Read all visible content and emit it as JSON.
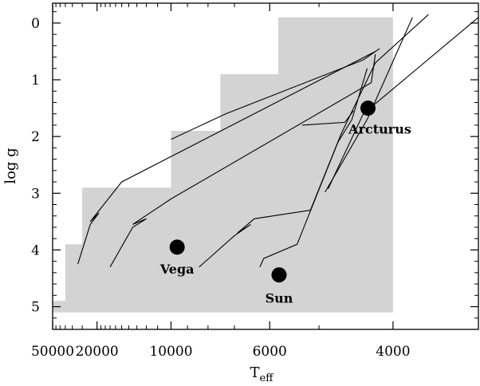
{
  "chart_data": {
    "type": "line",
    "xlabel_main": "T",
    "xlabel_sub": "eff",
    "ylabel": "log g",
    "x_scale": "reciprocal",
    "xlim": [
      50000,
      3250
    ],
    "ylim": [
      -0.35,
      5.4
    ],
    "x_ticks": [
      {
        "value": 50000,
        "label": "50000"
      },
      {
        "value": 20000,
        "label": "20000"
      },
      {
        "value": 10000,
        "label": "10000"
      },
      {
        "value": 6000,
        "label": "6000"
      },
      {
        "value": 4000,
        "label": "4000"
      }
    ],
    "y_ticks": [
      {
        "value": 0,
        "label": "0"
      },
      {
        "value": 1,
        "label": "1"
      },
      {
        "value": 2,
        "label": "2"
      },
      {
        "value": 3,
        "label": "3"
      },
      {
        "value": 4,
        "label": "4"
      },
      {
        "value": 5,
        "label": "5"
      }
    ],
    "shaded_region": {
      "color": "#d3d3d3",
      "boundary": [
        [
          50000,
          5.1
        ],
        [
          4000,
          5.1
        ],
        [
          4000,
          -0.1
        ],
        [
          5800,
          -0.1
        ],
        [
          5800,
          0.9
        ],
        [
          7500,
          0.9
        ],
        [
          7500,
          1.9
        ],
        [
          10000,
          1.9
        ],
        [
          10000,
          2.9
        ],
        [
          25000,
          2.9
        ],
        [
          25000,
          3.9
        ],
        [
          35000,
          3.9
        ],
        [
          35000,
          4.9
        ],
        [
          50000,
          4.9
        ]
      ]
    },
    "series": [
      {
        "points": [
          [
            27000,
            4.25
          ],
          [
            22000,
            3.55
          ],
          [
            19500,
            3.35
          ],
          [
            22000,
            3.5
          ],
          [
            15000,
            2.8
          ],
          [
            4200,
            0.5
          ]
        ]
      },
      {
        "points": [
          [
            17000,
            4.3
          ],
          [
            13500,
            3.6
          ],
          [
            12000,
            3.45
          ],
          [
            13500,
            3.55
          ],
          [
            10000,
            3.1
          ],
          [
            4250,
            1.05
          ],
          [
            4200,
            0.55
          ]
        ]
      },
      {
        "points": [
          [
            10000,
            2.05
          ],
          [
            7300,
            1.6
          ],
          [
            4350,
            0.65
          ],
          [
            4150,
            0.45
          ]
        ]
      },
      {
        "points": [
          [
            8400,
            4.3
          ],
          [
            7000,
            3.75
          ],
          [
            6500,
            3.55
          ],
          [
            6900,
            3.7
          ],
          [
            6400,
            3.45
          ],
          [
            5150,
            3.3
          ],
          [
            4650,
            1.95
          ],
          [
            4200,
            0.7
          ],
          [
            3650,
            -0.15
          ]
        ]
      },
      {
        "points": [
          [
            4900,
            2.98
          ],
          [
            4300,
            1.7
          ],
          [
            3800,
            -0.1
          ]
        ]
      },
      {
        "points": [
          [
            6250,
            4.3
          ],
          [
            6150,
            4.15
          ],
          [
            5400,
            3.9
          ],
          [
            4700,
            2.1
          ],
          [
            4500,
            1.7
          ],
          [
            4300,
            0.8
          ]
        ]
      },
      {
        "points": [
          [
            4850,
            2.92
          ],
          [
            4350,
            1.6
          ],
          [
            3250,
            -0.1
          ]
        ]
      },
      {
        "points": [
          [
            5300,
            1.8
          ],
          [
            4600,
            1.75
          ],
          [
            4480,
            1.55
          ]
        ]
      }
    ],
    "points": [
      {
        "name": "Vega",
        "teff": 9600,
        "logg": 3.95,
        "label": "Vega"
      },
      {
        "name": "Sun",
        "teff": 5780,
        "logg": 4.44,
        "label": "Sun"
      },
      {
        "name": "Arcturus",
        "teff": 4290,
        "logg": 1.5,
        "label": "Arcturus"
      }
    ]
  }
}
